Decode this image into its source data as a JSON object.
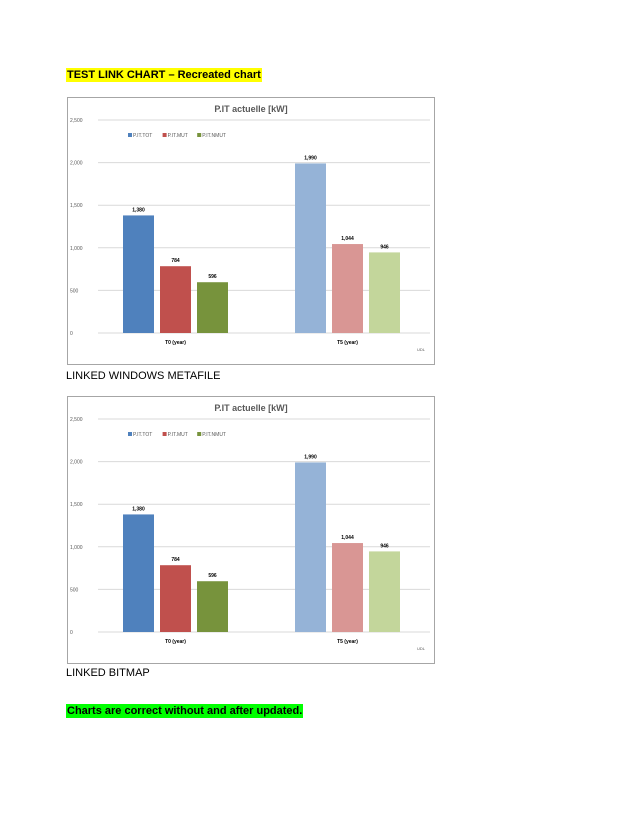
{
  "heading": "TEST LINK CHART – Recreated chart",
  "captions": [
    "LINKED WINDOWS METAFILE",
    "LINKED BITMAP"
  ],
  "footer_note": "Charts are correct without and after updated.",
  "colors": {
    "highlight_yellow": "#ffff00",
    "highlight_green": "#00ff00",
    "T0_series": [
      "#4f81bd",
      "#c0504d",
      "#77933c"
    ],
    "T5_series": [
      "#95b3d7",
      "#d99694",
      "#c3d69b"
    ]
  },
  "chart_data": [
    {
      "type": "bar",
      "title": "P.IT actuelle [kW]",
      "categories": [
        "T0 (year)",
        "T5 (year)"
      ],
      "series": [
        {
          "name": "P.IT.TOT",
          "values": [
            1380,
            1990
          ],
          "labels": [
            "1,380",
            "1,990"
          ]
        },
        {
          "name": "P.IT.MUT",
          "values": [
            784,
            1044
          ],
          "labels": [
            "784",
            "1,044"
          ]
        },
        {
          "name": "P.IT.NMUT",
          "values": [
            596,
            946
          ],
          "labels": [
            "596",
            "946"
          ]
        }
      ],
      "yticks": [
        "0",
        "500",
        "1,000",
        "1,500",
        "2,000",
        "2,500"
      ],
      "ylim": [
        0,
        2500
      ],
      "grid": true,
      "legend": "top-left",
      "corner_label": "UDL"
    },
    {
      "type": "bar",
      "title": "P.IT actuelle [kW]",
      "categories": [
        "T0 (year)",
        "T5 (year)"
      ],
      "series": [
        {
          "name": "P.IT.TOT",
          "values": [
            1380,
            1990
          ],
          "labels": [
            "1,380",
            "1,990"
          ]
        },
        {
          "name": "P.IT.MUT",
          "values": [
            784,
            1044
          ],
          "labels": [
            "784",
            "1,044"
          ]
        },
        {
          "name": "P.IT.NMUT",
          "values": [
            596,
            946
          ],
          "labels": [
            "596",
            "946"
          ]
        }
      ],
      "yticks": [
        "0",
        "500",
        "1,000",
        "1,500",
        "2,000",
        "2,500"
      ],
      "ylim": [
        0,
        2500
      ],
      "grid": true,
      "legend": "top-left",
      "corner_label": "UDL"
    }
  ]
}
